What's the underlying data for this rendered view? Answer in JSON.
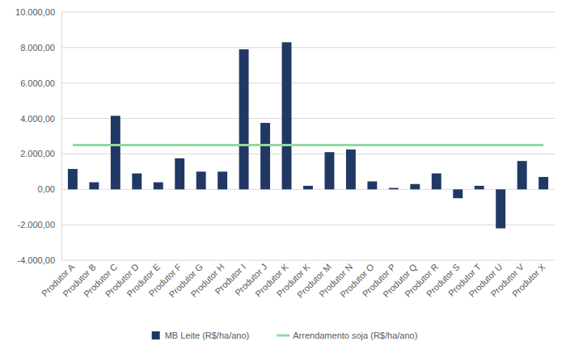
{
  "chart_data": {
    "type": "bar",
    "categories": [
      "Produtor A",
      "Produtor B",
      "Produtor C",
      "Produtor D",
      "Produtor E",
      "Produtor F",
      "Produtor G",
      "Produtor H",
      "Produtor I",
      "Produtor J",
      "Produtor K",
      "Produtor K",
      "Produtor M",
      "Produtor N",
      "Produtor O",
      "Produtor P",
      "Produtor Q",
      "Produtor R",
      "Produtor S",
      "Produtor T",
      "Produtor U",
      "Produtor V",
      "Produtor X"
    ],
    "series": [
      {
        "name": "MB Leite (R$/ha/ano)",
        "type": "bar",
        "color": "#203864",
        "values": [
          1150,
          400,
          4150,
          900,
          400,
          1750,
          1000,
          1000,
          7900,
          3750,
          8300,
          200,
          2100,
          2250,
          450,
          80,
          300,
          900,
          -500,
          200,
          -2200,
          1600,
          700
        ]
      },
      {
        "name": "Arrendamento soja (R$/ha/ano)",
        "type": "line",
        "color": "#92d8a0",
        "values": [
          2500,
          2500,
          2500,
          2500,
          2500,
          2500,
          2500,
          2500,
          2500,
          2500,
          2500,
          2500,
          2500,
          2500,
          2500,
          2500,
          2500,
          2500,
          2500,
          2500,
          2500,
          2500,
          2500
        ]
      }
    ],
    "ylim": [
      -4000,
      10000
    ],
    "yticks": [
      {
        "value": -4000,
        "label": "-4.000,00"
      },
      {
        "value": -2000,
        "label": "-2.000,00"
      },
      {
        "value": 0,
        "label": "0,00"
      },
      {
        "value": 2000,
        "label": "2.000,00"
      },
      {
        "value": 4000,
        "label": "4.000,00"
      },
      {
        "value": 6000,
        "label": "6.000,00"
      },
      {
        "value": 8000,
        "label": "8.000,00"
      },
      {
        "value": 10000,
        "label": "10.000,00"
      }
    ],
    "grid": true,
    "legend": "bottom"
  }
}
